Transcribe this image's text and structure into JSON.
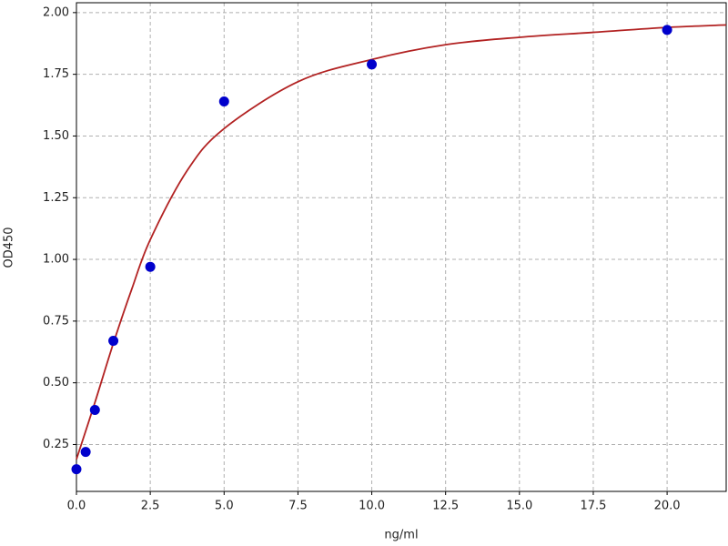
{
  "chart_data": {
    "type": "scatter",
    "x_label": "ng/ml",
    "y_label": "OD450",
    "xlim": [
      0,
      22
    ],
    "ylim": [
      0.06,
      2.04
    ],
    "xticks": [
      {
        "value": 0,
        "label": "0.0"
      },
      2.5,
      {
        "value": 5,
        "label": "5.0"
      },
      7.5,
      {
        "value": 10,
        "label": "10.0"
      },
      12.5,
      {
        "value": 15,
        "label": "15.0"
      },
      17.5,
      {
        "value": 20,
        "label": "20.0"
      }
    ],
    "yticks": [
      0.25,
      {
        "value": 0.5,
        "label": "0.50"
      },
      0.75,
      {
        "value": 1,
        "label": "1.00"
      },
      1.25,
      {
        "value": 1.5,
        "label": "1.50"
      },
      1.75,
      {
        "value": 2,
        "label": "2.00"
      }
    ],
    "grid": true,
    "series": [
      {
        "type": "line",
        "color": "#b22222",
        "x": [
          0,
          0.625,
          1.25,
          1.875,
          2.5,
          3.75,
          5,
          7.5,
          10,
          12.5,
          15,
          17.5,
          20,
          22
        ],
        "values": [
          0.19,
          0.42,
          0.66,
          0.88,
          1.08,
          1.36,
          1.53,
          1.72,
          1.81,
          1.87,
          1.9,
          1.92,
          1.94,
          1.95
        ]
      },
      {
        "type": "scatter",
        "color": "#0000cc",
        "x": [
          0,
          0.3125,
          0.625,
          1.25,
          2.5,
          5,
          10,
          20
        ],
        "values": [
          0.15,
          0.22,
          0.39,
          0.67,
          0.97,
          1.64,
          1.79,
          1.93
        ]
      }
    ]
  }
}
